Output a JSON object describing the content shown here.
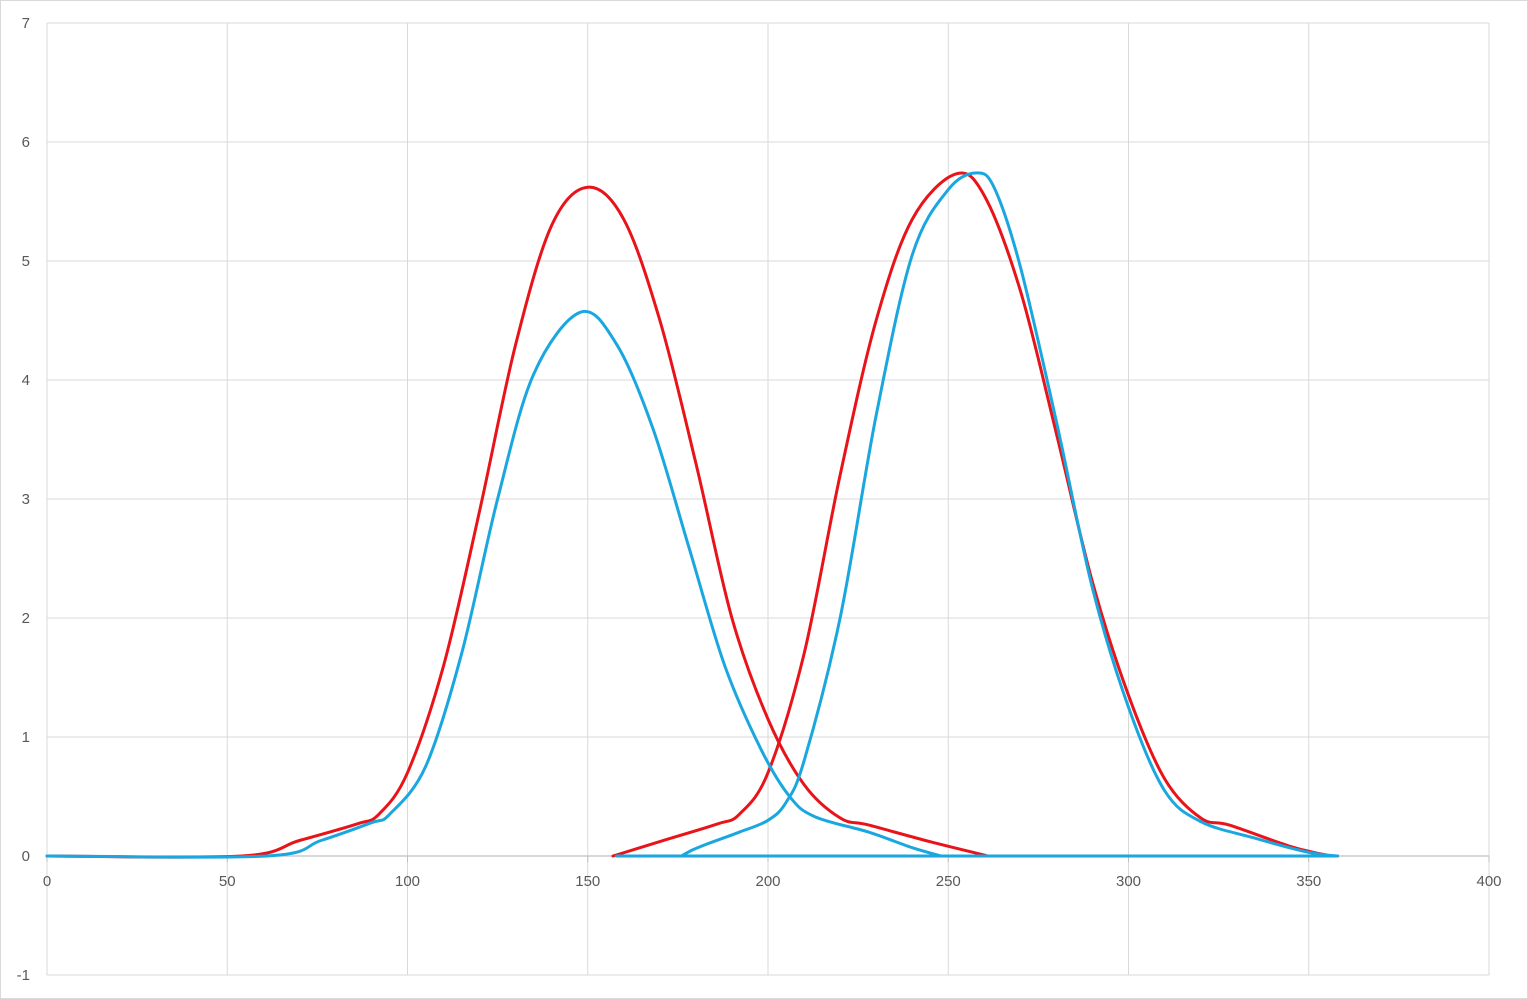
{
  "chart_data": {
    "type": "line",
    "title": "",
    "xlabel": "",
    "ylabel": "",
    "xlim": [
      0,
      400
    ],
    "ylim": [
      -1,
      7
    ],
    "x_ticks": [
      0,
      50,
      100,
      150,
      200,
      250,
      300,
      350,
      400
    ],
    "y_ticks": [
      -1,
      0,
      1,
      2,
      3,
      4,
      5,
      6,
      7
    ],
    "grid": true,
    "legend": "none",
    "series": [
      {
        "color": "#e8141a",
        "points": [
          [
            0,
            0
          ],
          [
            54,
            0
          ],
          [
            70,
            0.13
          ],
          [
            86,
            0.27
          ],
          [
            92,
            0.35
          ],
          [
            100,
            0.7
          ],
          [
            110,
            1.6
          ],
          [
            120,
            2.9
          ],
          [
            130,
            4.3
          ],
          [
            140,
            5.3
          ],
          [
            150,
            5.62
          ],
          [
            160,
            5.35
          ],
          [
            170,
            4.5
          ],
          [
            180,
            3.3
          ],
          [
            190,
            2.0
          ],
          [
            200,
            1.15
          ],
          [
            210,
            0.6
          ],
          [
            220,
            0.32
          ],
          [
            228,
            0.26
          ],
          [
            245,
            0.12
          ],
          [
            261,
            0
          ]
        ]
      },
      {
        "color": "#e8141a",
        "points": [
          [
            157,
            0
          ],
          [
            172,
            0.14
          ],
          [
            186,
            0.27
          ],
          [
            192,
            0.35
          ],
          [
            200,
            0.7
          ],
          [
            210,
            1.7
          ],
          [
            220,
            3.2
          ],
          [
            230,
            4.5
          ],
          [
            240,
            5.35
          ],
          [
            252,
            5.73
          ],
          [
            260,
            5.55
          ],
          [
            270,
            4.75
          ],
          [
            280,
            3.55
          ],
          [
            290,
            2.3
          ],
          [
            300,
            1.35
          ],
          [
            310,
            0.65
          ],
          [
            320,
            0.32
          ],
          [
            328,
            0.26
          ],
          [
            345,
            0.08
          ],
          [
            356,
            0
          ]
        ]
      },
      {
        "color": "#1aa7e0",
        "points": [
          [
            0,
            0
          ],
          [
            61,
            0
          ],
          [
            76,
            0.13
          ],
          [
            90,
            0.28
          ],
          [
            95,
            0.35
          ],
          [
            105,
            0.75
          ],
          [
            115,
            1.7
          ],
          [
            125,
            3.0
          ],
          [
            135,
            4.05
          ],
          [
            148,
            4.57
          ],
          [
            158,
            4.3
          ],
          [
            168,
            3.6
          ],
          [
            178,
            2.6
          ],
          [
            188,
            1.6
          ],
          [
            198,
            0.9
          ],
          [
            206,
            0.5
          ],
          [
            213,
            0.33
          ],
          [
            228,
            0.2
          ],
          [
            240,
            0.07
          ],
          [
            248,
            0
          ]
        ]
      },
      {
        "color": "#1aa7e0",
        "points": [
          [
            176,
            0
          ],
          [
            179,
            0.05
          ],
          [
            183,
            0.1
          ],
          [
            192,
            0.2
          ],
          [
            200,
            0.3
          ],
          [
            205,
            0.45
          ],
          [
            210,
            0.8
          ],
          [
            220,
            2.0
          ],
          [
            230,
            3.7
          ],
          [
            240,
            5.05
          ],
          [
            250,
            5.6
          ],
          [
            258,
            5.74
          ],
          [
            263,
            5.6
          ],
          [
            270,
            4.95
          ],
          [
            280,
            3.65
          ],
          [
            290,
            2.25
          ],
          [
            300,
            1.25
          ],
          [
            310,
            0.55
          ],
          [
            320,
            0.29
          ],
          [
            335,
            0.15
          ],
          [
            350,
            0.03
          ],
          [
            358,
            0
          ]
        ]
      },
      {
        "color": "#1aa7e0",
        "points": [
          [
            158,
            0
          ],
          [
            358,
            0
          ]
        ]
      }
    ]
  }
}
